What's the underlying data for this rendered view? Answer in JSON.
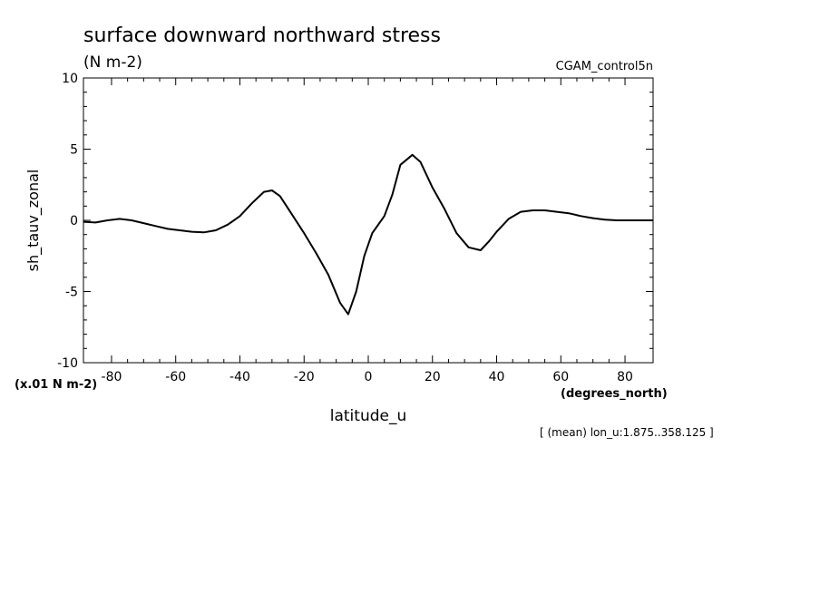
{
  "chart_data": {
    "type": "line",
    "title": "surface downward northward stress",
    "subtitle": "(N m-2)",
    "run_label": "CGAM_control5n",
    "xlabel": "latitude_u",
    "x_units": "(degrees_north)",
    "ylabel": "sh_tauv_zonal",
    "y_scale_note": "(x.01 N m-2)",
    "footnote": "[ (mean) lon_u:1.875..358.125 ]",
    "xlim": [
      -88.75,
      88.75
    ],
    "ylim": [
      -10,
      10
    ],
    "x_ticks": [
      -80,
      -60,
      -40,
      -20,
      0,
      20,
      40,
      60,
      80
    ],
    "x_tick_labels": [
      "-80",
      "-60",
      "-40",
      "-20",
      "0",
      "20",
      "40",
      "60",
      "80"
    ],
    "y_ticks": [
      -10,
      -5,
      0,
      5,
      10
    ],
    "y_tick_labels": [
      "-10",
      "-5",
      "0",
      "5",
      "10"
    ],
    "grid": false,
    "line_color": "#000000",
    "series": [
      {
        "x": [
          -88.75,
          -85,
          -81.25,
          -77.5,
          -73.75,
          -70,
          -66.25,
          -62.5,
          -58.75,
          -55,
          -51.25,
          -47.5,
          -43.75,
          -40,
          -36.25,
          -32.5,
          -30,
          -27.5,
          -23.75,
          -20,
          -16.25,
          -12.5,
          -8.75,
          -6.25,
          -3.75,
          -1.25,
          1.25,
          5,
          7.5,
          10,
          13.75,
          16.25,
          20,
          23.75,
          27.5,
          31.25,
          35,
          37.5,
          40,
          43.75,
          47.5,
          51.25,
          55,
          58.75,
          62.5,
          66.25,
          70,
          73.75,
          77.5,
          81.25,
          85,
          88.75
        ],
        "y": [
          -0.1,
          -0.15,
          0,
          0.1,
          0,
          -0.2,
          -0.4,
          -0.6,
          -0.7,
          -0.8,
          -0.85,
          -0.7,
          -0.3,
          0.3,
          1.2,
          2.0,
          2.1,
          1.7,
          0.4,
          -0.9,
          -2.3,
          -3.8,
          -5.8,
          -6.6,
          -5.0,
          -2.5,
          -0.9,
          0.3,
          1.8,
          3.9,
          4.6,
          4.1,
          2.3,
          0.8,
          -0.9,
          -1.9,
          -2.1,
          -1.5,
          -0.8,
          0.1,
          0.6,
          0.7,
          0.7,
          0.6,
          0.5,
          0.3,
          0.15,
          0.05,
          0,
          0,
          0,
          0
        ]
      }
    ]
  }
}
